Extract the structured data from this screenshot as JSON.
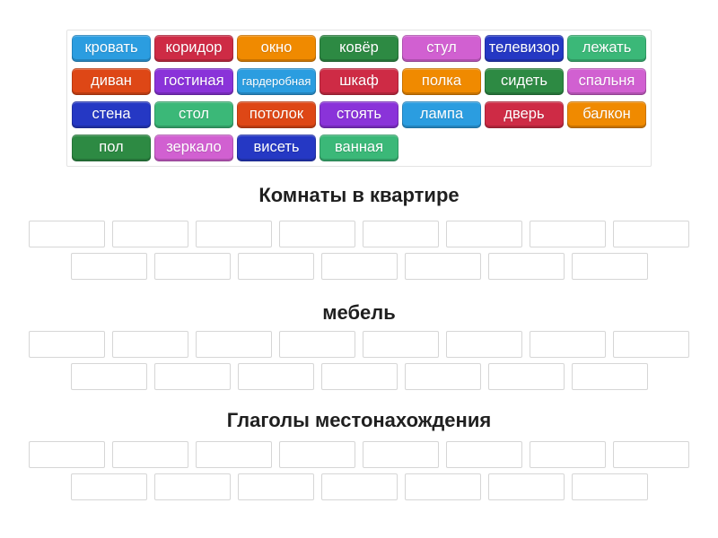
{
  "palette": {
    "light_blue": "#2B9DE0",
    "crimson": "#CE2B45",
    "orange": "#F08A00",
    "green": "#2D8A43",
    "orchid": "#D160D1",
    "royal_blue": "#2538C4",
    "emerald": "#3BB878",
    "vermilion": "#DE4716",
    "purple": "#8A33D9",
    "chip_text": "#FFFFFF",
    "slot_border": "#D6D6D6",
    "panel_border": "#E3E3E3",
    "title_text": "#1F1F1F"
  },
  "word_bank": {
    "rows": [
      [
        {
          "label": "кровать",
          "color": "light_blue"
        },
        {
          "label": "коридор",
          "color": "crimson"
        },
        {
          "label": "окно",
          "color": "orange"
        },
        {
          "label": "ковёр",
          "color": "green"
        },
        {
          "label": "стул",
          "color": "orchid"
        },
        {
          "label": "телевизор",
          "color": "royal_blue"
        },
        {
          "label": "лежать",
          "color": "emerald"
        }
      ],
      [
        {
          "label": "диван",
          "color": "vermilion"
        },
        {
          "label": "гостиная",
          "color": "purple"
        },
        {
          "label": "гардеробная",
          "color": "light_blue",
          "small_text": true
        },
        {
          "label": "шкаф",
          "color": "crimson"
        },
        {
          "label": "полка",
          "color": "orange"
        },
        {
          "label": "сидеть",
          "color": "green"
        },
        {
          "label": "спальня",
          "color": "orchid"
        }
      ],
      [
        {
          "label": "стена",
          "color": "royal_blue"
        },
        {
          "label": "стол",
          "color": "emerald"
        },
        {
          "label": "потолок",
          "color": "vermilion"
        },
        {
          "label": "стоять",
          "color": "purple"
        },
        {
          "label": "лампа",
          "color": "light_blue"
        },
        {
          "label": "дверь",
          "color": "crimson"
        },
        {
          "label": "балкон",
          "color": "orange"
        }
      ],
      [
        {
          "label": "пол",
          "color": "green"
        },
        {
          "label": "зеркало",
          "color": "orchid"
        },
        {
          "label": "висеть",
          "color": "royal_blue"
        },
        {
          "label": "ванная",
          "color": "emerald"
        }
      ]
    ]
  },
  "groups": [
    {
      "title": "Комнаты в квартире",
      "slot_rows": [
        8,
        7
      ]
    },
    {
      "title": "мебель",
      "slot_rows": [
        8,
        7
      ]
    },
    {
      "title": "Глаголы местонахождения",
      "slot_rows": [
        8,
        7
      ]
    }
  ]
}
